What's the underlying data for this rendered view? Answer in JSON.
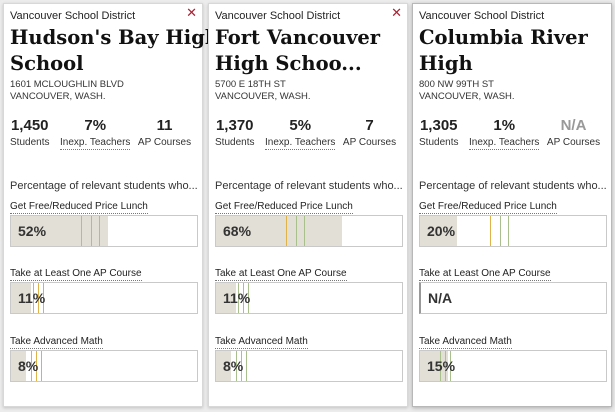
{
  "cards": [
    {
      "district": "Vancouver School District",
      "name_lines": [
        "Hudson's Bay High",
        "School"
      ],
      "address_lines": [
        "1601 MCLOUGHLIN BLVD",
        "VANCOUVER, WASH."
      ],
      "stats": {
        "students": "1,450",
        "students_label": "Students",
        "teachers": "7%",
        "teachers_label": "Inexp. Teachers",
        "ap": "11",
        "ap_label": "AP Courses"
      },
      "intro": "Percentage of relevant students who...",
      "metrics": [
        {
          "label": "Get Free/Reduced Price Lunch",
          "value": "52%",
          "fill": 0.52
        },
        {
          "label": "Take at Least One AP Course",
          "value": "11%",
          "fill": 0.11
        },
        {
          "label": "Take Advanced Math",
          "value": "8%",
          "fill": 0.08
        }
      ]
    },
    {
      "district": "Vancouver School District",
      "name_lines": [
        "Fort Vancouver",
        "High Schoo..."
      ],
      "address_lines": [
        "5700 E 18TH ST",
        "VANCOUVER, WASH."
      ],
      "stats": {
        "students": "1,370",
        "students_label": "Students",
        "teachers": "5%",
        "teachers_label": "Inexp. Teachers",
        "ap": "7",
        "ap_label": "AP Courses"
      },
      "intro": "Percentage of relevant students who...",
      "metrics": [
        {
          "label": "Get Free/Reduced Price Lunch",
          "value": "68%",
          "fill": 0.68
        },
        {
          "label": "Take at Least One AP Course",
          "value": "11%",
          "fill": 0.11
        },
        {
          "label": "Take Advanced Math",
          "value": "8%",
          "fill": 0.08
        }
      ]
    },
    {
      "district": "Vancouver School District",
      "name_lines": [
        "Columbia River",
        "High"
      ],
      "address_lines": [
        "800 NW 99TH ST",
        "VANCOUVER, WASH."
      ],
      "stats": {
        "students": "1,305",
        "students_label": "Students",
        "teachers": "1%",
        "teachers_label": "Inexp. Teachers",
        "ap": "N/A",
        "ap_label": "AP Courses"
      },
      "intro": "Percentage of relevant students who...",
      "metrics": [
        {
          "label": "Get Free/Reduced Price Lunch",
          "value": "20%",
          "fill": 0.2
        },
        {
          "label": "Take at Least One AP Course",
          "value": "N/A",
          "fill": 0
        },
        {
          "label": "Take Advanced Math",
          "value": "15%",
          "fill": 0.15
        }
      ]
    }
  ],
  "colors": {
    "bar_fill": "#e2dfd6",
    "marker_yellow": "#e0b24a",
    "marker_green": "#a9bf8c",
    "close_icon": "#aa2233",
    "na_text": "#999999"
  }
}
